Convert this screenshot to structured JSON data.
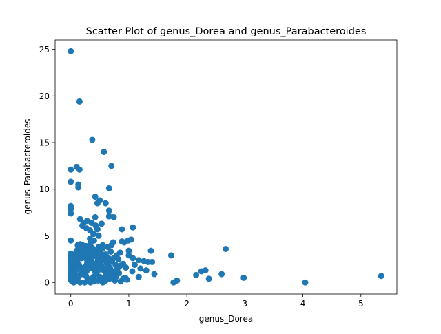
{
  "chart_data": {
    "type": "scatter",
    "title": "Scatter Plot of genus_Dorea and genus_Parabacteroides",
    "xlabel": "genus_Dorea",
    "ylabel": "genus_Parabacteroides",
    "xlim": [
      -0.27,
      5.62
    ],
    "ylim": [
      -1.24,
      26.0
    ],
    "xticks": [
      0,
      1,
      2,
      3,
      4,
      5
    ],
    "yticks": [
      0,
      5,
      10,
      15,
      20,
      25
    ],
    "grid": false,
    "marker_color": "#1f77b4",
    "series": [
      {
        "points": [
          [
            0.0,
            24.8
          ],
          [
            0.15,
            19.4
          ],
          [
            0.37,
            15.3
          ],
          [
            0.57,
            14.0
          ],
          [
            0.7,
            12.5
          ],
          [
            0.0,
            12.1
          ],
          [
            0.1,
            12.4
          ],
          [
            0.15,
            12.1
          ],
          [
            0.0,
            10.8
          ],
          [
            0.13,
            10.5
          ],
          [
            0.13,
            10.2
          ],
          [
            0.66,
            10.1
          ],
          [
            0.42,
            9.2
          ],
          [
            0.5,
            8.8
          ],
          [
            0.46,
            8.5
          ],
          [
            0.6,
            8.5
          ],
          [
            0.0,
            8.2
          ],
          [
            0.0,
            7.9
          ],
          [
            0.0,
            7.4
          ],
          [
            0.66,
            7.7
          ],
          [
            0.66,
            7.1
          ],
          [
            0.74,
            7.0
          ],
          [
            0.42,
            7.0
          ],
          [
            0.16,
            6.8
          ],
          [
            0.22,
            6.4
          ],
          [
            0.28,
            6.6
          ],
          [
            0.36,
            6.4
          ],
          [
            0.43,
            6.1
          ],
          [
            0.53,
            6.3
          ],
          [
            0.2,
            6.1
          ],
          [
            0.27,
            5.8
          ],
          [
            0.33,
            5.6
          ],
          [
            0.46,
            5.7
          ],
          [
            0.88,
            5.7
          ],
          [
            1.07,
            5.9
          ],
          [
            0.39,
            5.2
          ],
          [
            0.48,
            5.0
          ],
          [
            0.33,
            4.7
          ],
          [
            0.4,
            4.5
          ],
          [
            0.0,
            4.5
          ],
          [
            0.88,
            4.4
          ],
          [
            0.92,
            4.3
          ],
          [
            0.99,
            4.5
          ],
          [
            1.04,
            4.6
          ],
          [
            0.73,
            4.3
          ],
          [
            0.55,
            4.0
          ],
          [
            0.64,
            3.8
          ],
          [
            0.7,
            4.0
          ],
          [
            0.85,
            3.2
          ],
          [
            1.0,
            3.4
          ],
          [
            1.38,
            3.4
          ],
          [
            1.73,
            2.9
          ],
          [
            2.67,
            3.6
          ],
          [
            1.07,
            2.6
          ],
          [
            1.17,
            2.4
          ],
          [
            1.26,
            2.3
          ],
          [
            1.33,
            2.2
          ],
          [
            1.4,
            2.2
          ],
          [
            1.3,
            1.3
          ],
          [
            1.44,
            0.9
          ],
          [
            1.17,
            0.6
          ],
          [
            1.06,
            1.2
          ],
          [
            0.85,
            1.8
          ],
          [
            0.9,
            0.4
          ],
          [
            0.97,
            0.3
          ],
          [
            0.78,
            0.6
          ],
          [
            0.86,
            0.1
          ],
          [
            0.94,
            0.5
          ],
          [
            1.77,
            0.0
          ],
          [
            1.83,
            0.2
          ],
          [
            2.16,
            0.8
          ],
          [
            2.25,
            1.2
          ],
          [
            2.32,
            1.3
          ],
          [
            2.38,
            0.4
          ],
          [
            2.6,
            0.9
          ],
          [
            2.98,
            0.5
          ],
          [
            4.04,
            0.0
          ],
          [
            5.35,
            0.7
          ],
          [
            0.05,
            0.0
          ],
          [
            0.1,
            0.2
          ],
          [
            0.12,
            0.5
          ],
          [
            0.15,
            0.8
          ],
          [
            0.18,
            1.1
          ],
          [
            0.22,
            1.4
          ],
          [
            0.25,
            1.7
          ],
          [
            0.28,
            2.0
          ],
          [
            0.32,
            2.3
          ],
          [
            0.35,
            2.6
          ],
          [
            0.38,
            2.9
          ],
          [
            0.42,
            3.2
          ],
          [
            0.45,
            3.5
          ],
          [
            0.48,
            3.8
          ],
          [
            0.52,
            3.1
          ],
          [
            0.55,
            2.7
          ],
          [
            0.58,
            2.4
          ],
          [
            0.62,
            2.1
          ],
          [
            0.65,
            1.8
          ],
          [
            0.68,
            1.5
          ],
          [
            0.72,
            1.2
          ],
          [
            0.75,
            0.9
          ],
          [
            0.08,
            2.5
          ],
          [
            0.11,
            2.2
          ],
          [
            0.14,
            1.9
          ],
          [
            0.17,
            1.6
          ],
          [
            0.2,
            1.3
          ],
          [
            0.23,
            1.0
          ],
          [
            0.26,
            0.7
          ],
          [
            0.29,
            0.4
          ],
          [
            0.32,
            0.1
          ],
          [
            0.36,
            0.3
          ],
          [
            0.39,
            0.6
          ],
          [
            0.43,
            0.9
          ],
          [
            0.46,
            1.2
          ],
          [
            0.49,
            1.5
          ],
          [
            0.53,
            1.8
          ],
          [
            0.56,
            0.5
          ],
          [
            0.6,
            0.2
          ],
          [
            0.63,
            0.8
          ],
          [
            0.07,
            3.0
          ],
          [
            0.1,
            3.4
          ],
          [
            0.13,
            3.8
          ],
          [
            0.16,
            4.1
          ],
          [
            0.19,
            3.6
          ],
          [
            0.22,
            3.2
          ],
          [
            0.25,
            2.8
          ],
          [
            0.28,
            3.5
          ],
          [
            0.31,
            3.9
          ],
          [
            0.34,
            4.2
          ],
          [
            0.37,
            3.7
          ],
          [
            0.4,
            3.3
          ],
          [
            0.44,
            2.8
          ],
          [
            0.47,
            2.4
          ],
          [
            0.51,
            2.0
          ],
          [
            0.54,
            1.6
          ],
          [
            0.57,
            1.3
          ],
          [
            0.61,
            1.0
          ],
          [
            0.64,
            0.7
          ],
          [
            0.67,
            0.4
          ],
          [
            0.71,
            2.3
          ],
          [
            0.74,
            2.6
          ],
          [
            0.77,
            1.9
          ],
          [
            0.8,
            1.4
          ],
          [
            0.83,
            1.0
          ],
          [
            0.0,
            0.3
          ],
          [
            0.0,
            0.7
          ],
          [
            0.0,
            1.1
          ],
          [
            0.0,
            1.5
          ],
          [
            0.0,
            1.9
          ],
          [
            0.0,
            2.3
          ],
          [
            0.0,
            2.7
          ],
          [
            0.0,
            3.1
          ],
          [
            0.02,
            0.1
          ],
          [
            0.04,
            0.5
          ],
          [
            0.06,
            0.9
          ],
          [
            0.08,
            1.3
          ],
          [
            0.09,
            1.7
          ],
          [
            0.11,
            2.9
          ],
          [
            0.14,
            3.2
          ],
          [
            0.18,
            2.6
          ],
          [
            0.21,
            2.9
          ],
          [
            0.24,
            3.3
          ],
          [
            0.27,
            2.5
          ],
          [
            0.3,
            2.2
          ],
          [
            0.33,
            1.9
          ],
          [
            0.36,
            1.6
          ],
          [
            0.41,
            1.3
          ],
          [
            0.44,
            1.0
          ],
          [
            0.5,
            0.6
          ],
          [
            0.52,
            0.3
          ],
          [
            0.55,
            0.0
          ],
          [
            0.59,
            0.4
          ],
          [
            0.62,
            1.4
          ],
          [
            0.66,
            1.1
          ],
          [
            0.69,
            0.8
          ],
          [
            0.72,
            0.5
          ],
          [
            0.76,
            0.2
          ],
          [
            0.79,
            2.9
          ],
          [
            0.82,
            2.5
          ],
          [
            0.9,
            2.0
          ],
          [
            0.95,
            1.6
          ],
          [
            1.0,
            2.9
          ],
          [
            1.1,
            1.9
          ],
          [
            1.2,
            1.5
          ],
          [
            0.16,
            0.0
          ],
          [
            0.24,
            0.0
          ],
          [
            0.34,
            0.0
          ],
          [
            0.4,
            0.1
          ],
          [
            0.47,
            0.2
          ],
          [
            0.3,
            3.0
          ],
          [
            0.35,
            3.4
          ],
          [
            0.26,
            3.9
          ],
          [
            0.2,
            4.0
          ],
          [
            0.12,
            4.0
          ],
          [
            0.5,
            2.5
          ],
          [
            0.54,
            3.6
          ],
          [
            0.6,
            3.0
          ],
          [
            0.65,
            2.6
          ],
          [
            0.69,
            3.3
          ],
          [
            0.45,
            1.8
          ],
          [
            0.38,
            2.1
          ],
          [
            0.31,
            1.5
          ],
          [
            0.27,
            1.2
          ],
          [
            0.21,
            0.9
          ],
          [
            0.13,
            0.6
          ],
          [
            0.09,
            0.3
          ],
          [
            0.06,
            2.0
          ],
          [
            0.04,
            1.6
          ],
          [
            0.03,
            2.4
          ]
        ]
      }
    ]
  }
}
